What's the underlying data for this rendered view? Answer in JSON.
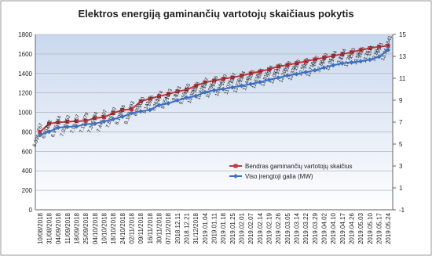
{
  "chart_data": {
    "type": "line",
    "title": "Elektros energiją gaminančių vartotojų skaičiaus pokytis",
    "categories": [
      "10/08/2018",
      "31/08/2018",
      "04/09/2018",
      "11/09/2018",
      "18/09/2018",
      "25/09/2018",
      "04/10/2018",
      "10/10/2018",
      "18/10/2018",
      "24/10/2018",
      "02/11/2018",
      "09/11/2018",
      "16/11/2018",
      "30/11/2018",
      "07/12/2018",
      "2018.12.11",
      "2018.12.21",
      "31/12/2018",
      "2019.01.04",
      "2019.01.11",
      "2019.01.18",
      "2019.01.25",
      "2019.02.01",
      "2019.02.07",
      "2019.02.14",
      "2019.02.19",
      "2019.02.26",
      "2019.03.05",
      "2019.03.14",
      "2019.03.22",
      "2019.03.29",
      "2019.04.02",
      "2019.04.10",
      "2019.04.17",
      "2019.04.26",
      "2019.05.03",
      "2019.05.10",
      "2019.05.17",
      "2019.05.24"
    ],
    "series": [
      {
        "name": "Bendras gaminančių vartotojų skaičius",
        "color": "#c0393b",
        "marker": "square",
        "axis": "y2",
        "values": [
          6.096,
          6.862,
          6.976,
          7.038,
          7.08,
          7.12,
          7.366,
          7.446,
          7.826,
          8.108,
          8.168,
          8.903,
          9.141,
          9.363,
          9.554,
          9.8,
          9.955,
          10.309,
          10.628,
          10.786,
          10.944,
          11.075,
          11.235,
          11.445,
          11.618,
          11.815,
          12.083,
          12.205,
          12.378,
          12.55,
          12.718,
          12.88,
          13.05,
          13.2,
          13.38,
          13.58,
          13.75,
          13.88,
          13.96
        ]
      },
      {
        "name": "Viso įrengtoji galia (MW)",
        "color": "#3c6fc4",
        "marker": "diamond",
        "values": [
          767,
          802,
          844,
          852,
          857,
          879,
          884,
          907,
          930,
          956,
          993,
          1010,
          1026,
          1074,
          1093,
          1123,
          1150,
          1168,
          1207,
          1226,
          1240,
          1257,
          1274,
          1291,
          1311,
          1334,
          1356,
          1378,
          1393,
          1412,
          1432,
          1459,
          1484,
          1504,
          1513,
          1525,
          1541,
          1571,
          1641
        ]
      }
    ],
    "ylim": [
      0,
      1800
    ],
    "yticks": [
      0,
      200,
      400,
      600,
      800,
      1000,
      1200,
      1400,
      1600,
      1800
    ],
    "y2lim": [
      -1,
      15
    ],
    "y2ticks": [
      -1,
      1,
      3,
      5,
      7,
      9,
      11,
      13,
      15
    ],
    "grid": true
  }
}
